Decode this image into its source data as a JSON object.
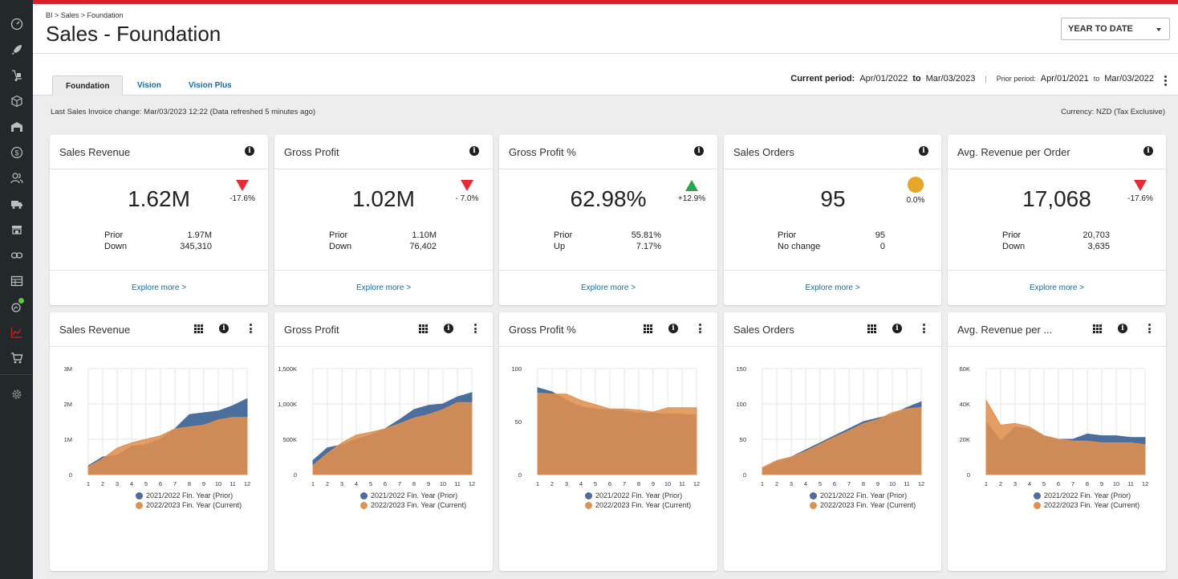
{
  "colors": {
    "prior": "#4b6e9c",
    "current": "#e0904f",
    "down": "#e32c36",
    "up": "#2ca54a",
    "neutral": "#e6a628",
    "accent": "#d8202f"
  },
  "sidebar": {
    "icons": [
      "dashboard-icon",
      "rocket-icon",
      "hand-truck-icon",
      "box-icon",
      "warehouse-icon",
      "dollar-icon",
      "users-icon",
      "truck-icon",
      "store-icon",
      "link-icon",
      "table-icon",
      "analytics-icon",
      "chart-icon",
      "cart-icon",
      "settings-icon"
    ]
  },
  "header": {
    "breadcrumb": "BI > Sales > Foundation",
    "title": "Sales - Foundation",
    "period_select": "YEAR TO DATE"
  },
  "tabs": [
    {
      "label": "Foundation",
      "active": true
    },
    {
      "label": "Vision",
      "active": false
    },
    {
      "label": "Vision Plus",
      "active": false
    }
  ],
  "period": {
    "current_label": "Current period:",
    "current_from": "Apr/01/2022",
    "to": "to",
    "current_to": "Mar/03/2023",
    "separator": "|",
    "prior_label": "Prior period:",
    "prior_from": "Apr/01/2021",
    "prior_to": "Mar/03/2022"
  },
  "info": {
    "last_change": "Last Sales Invoice change: Mar/03/2023 12:22 (Data refreshed 5 minutes ago)",
    "currency": "Currency:  NZD (Tax Exclusive)"
  },
  "kpis": [
    {
      "title": "Sales Revenue",
      "value": "1.62M",
      "trend": "down",
      "change": "-17.6%",
      "prior_label": "Prior",
      "prior_value": "1.97M",
      "diff_label": "Down",
      "diff_value": "345,310",
      "link": "Explore more >"
    },
    {
      "title": "Gross Profit",
      "value": "1.02M",
      "trend": "down",
      "change": "- 7.0%",
      "prior_label": "Prior",
      "prior_value": "1.10M",
      "diff_label": "Down",
      "diff_value": "76,402",
      "link": "Explore more >"
    },
    {
      "title": "Gross Profit %",
      "value": "62.98%",
      "trend": "up",
      "change": "+12.9%",
      "prior_label": "Prior",
      "prior_value": "55.81%",
      "diff_label": "Up",
      "diff_value": "7.17%",
      "link": "Explore more >"
    },
    {
      "title": "Sales Orders",
      "value": "95",
      "trend": "neutral",
      "change": "0.0%",
      "prior_label": "Prior",
      "prior_value": "95",
      "diff_label": "No change",
      "diff_value": "0",
      "link": "Explore more >"
    },
    {
      "title": "Avg. Revenue per Order",
      "value": "17,068",
      "trend": "down",
      "change": "-17.6%",
      "prior_label": "Prior",
      "prior_value": "20,703",
      "diff_label": "Down",
      "diff_value": "3,635",
      "link": "Explore more >"
    }
  ],
  "legend": {
    "prior": "2021/2022 Fin. Year (Prior)",
    "current": "2022/2023 Fin. Year (Current)"
  },
  "chart_data": [
    {
      "type": "area",
      "title": "Sales Revenue",
      "x": [
        1,
        2,
        3,
        4,
        5,
        6,
        7,
        8,
        9,
        10,
        11,
        12
      ],
      "ylim": [
        0,
        3000000
      ],
      "yticks": [
        0,
        1000000,
        2000000,
        3000000
      ],
      "yticklabels": [
        "0",
        "1M",
        "2M",
        "3M"
      ],
      "series": [
        {
          "name": "2021/2022 Fin. Year (Prior)",
          "values": [
            250000,
            500000,
            550000,
            800000,
            850000,
            1000000,
            1300000,
            1700000,
            1750000,
            1800000,
            1950000,
            2150000
          ]
        },
        {
          "name": "2022/2023 Fin. Year (Current)",
          "values": [
            220000,
            450000,
            750000,
            900000,
            1000000,
            1100000,
            1300000,
            1350000,
            1400000,
            1550000,
            1620000,
            1620000
          ]
        }
      ]
    },
    {
      "type": "area",
      "title": "Gross Profit",
      "x": [
        1,
        2,
        3,
        4,
        5,
        6,
        7,
        8,
        9,
        10,
        11,
        12
      ],
      "ylim": [
        0,
        1500000
      ],
      "yticks": [
        0,
        500000,
        1000000,
        1500000
      ],
      "yticklabels": [
        "0",
        "500K",
        "1,000K",
        "1,500K"
      ],
      "series": [
        {
          "name": "2021/2022 Fin. Year (Prior)",
          "values": [
            200000,
            380000,
            420000,
            500000,
            560000,
            650000,
            780000,
            920000,
            980000,
            1000000,
            1100000,
            1160000
          ]
        },
        {
          "name": "2022/2023 Fin. Year (Current)",
          "values": [
            130000,
            300000,
            450000,
            560000,
            600000,
            650000,
            720000,
            800000,
            850000,
            920000,
            1020000,
            1020000
          ]
        }
      ]
    },
    {
      "type": "area",
      "title": "Gross Profit %",
      "x": [
        1,
        2,
        3,
        4,
        5,
        6,
        7,
        8,
        9,
        10,
        11,
        12
      ],
      "ylim": [
        0,
        100
      ],
      "yticks": [
        0,
        50,
        100
      ],
      "yticklabels": [
        "0",
        "50",
        "100"
      ],
      "series": [
        {
          "name": "2021/2022 Fin. Year (Prior)",
          "values": [
            82,
            78,
            70,
            64,
            62,
            61,
            60,
            58,
            58,
            57,
            57,
            56
          ]
        },
        {
          "name": "2022/2023 Fin. Year (Current)",
          "values": [
            77,
            76,
            76,
            70,
            66,
            62,
            62,
            61,
            59,
            63,
            63,
            63
          ]
        }
      ]
    },
    {
      "type": "area",
      "title": "Sales Orders",
      "x": [
        1,
        2,
        3,
        4,
        5,
        6,
        7,
        8,
        9,
        10,
        11,
        12
      ],
      "ylim": [
        0,
        150
      ],
      "yticks": [
        0,
        50,
        100,
        150
      ],
      "yticklabels": [
        "0",
        "50",
        "100",
        "150"
      ],
      "series": [
        {
          "name": "2021/2022 Fin. Year (Prior)",
          "values": [
            8,
            18,
            25,
            35,
            45,
            55,
            65,
            75,
            80,
            85,
            95,
            103
          ]
        },
        {
          "name": "2022/2023 Fin. Year (Current)",
          "values": [
            10,
            20,
            25,
            33,
            43,
            53,
            62,
            72,
            78,
            88,
            93,
            95
          ]
        }
      ]
    },
    {
      "type": "area",
      "title": "Avg. Revenue per ...",
      "x": [
        1,
        2,
        3,
        4,
        5,
        6,
        7,
        8,
        9,
        10,
        11,
        12
      ],
      "ylim": [
        0,
        60000
      ],
      "yticks": [
        0,
        20000,
        40000,
        60000
      ],
      "yticklabels": [
        "0",
        "20K",
        "40K",
        "60K"
      ],
      "series": [
        {
          "name": "2021/2022 Fin. Year (Prior)",
          "values": [
            30000,
            19000,
            27000,
            26000,
            22000,
            20000,
            20000,
            23000,
            22000,
            22000,
            21000,
            21000
          ]
        },
        {
          "name": "2022/2023 Fin. Year (Current)",
          "values": [
            42000,
            28000,
            29000,
            27000,
            22000,
            20000,
            19000,
            19000,
            18000,
            18000,
            18000,
            17000
          ]
        }
      ]
    }
  ]
}
